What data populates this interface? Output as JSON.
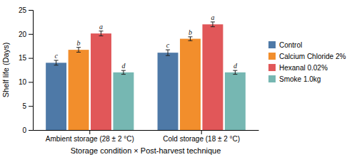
{
  "chart_data": {
    "type": "bar",
    "xlabel": "Storage condition × Post-harvest technique",
    "ylabel": "Shelf life (Days)",
    "categories": [
      "Ambient storage (28 ± 2 °C)",
      "Cold storage (18 ± 2 °C)"
    ],
    "series": [
      {
        "name": "Control",
        "values": [
          14.0,
          16.1
        ],
        "errors": [
          0.5,
          0.6
        ],
        "letters": [
          "c",
          "c"
        ]
      },
      {
        "name": "Calcium Chloride 2%",
        "values": [
          16.7,
          19.0
        ],
        "errors": [
          0.5,
          0.4
        ],
        "letters": [
          "b",
          "b"
        ]
      },
      {
        "name": "Hexanal 0.02%",
        "values": [
          20.1,
          22.0
        ],
        "errors": [
          0.5,
          0.5
        ],
        "letters": [
          "a",
          "a"
        ]
      },
      {
        "name": "Smoke 1.0kg",
        "values": [
          12.0,
          12.0
        ],
        "errors": [
          0.4,
          0.4
        ],
        "letters": [
          "d",
          "d"
        ]
      }
    ],
    "ylim": [
      0,
      25
    ],
    "yticks": [
      0,
      5,
      10,
      15,
      20,
      25
    ],
    "grid": false,
    "legend": "right"
  }
}
